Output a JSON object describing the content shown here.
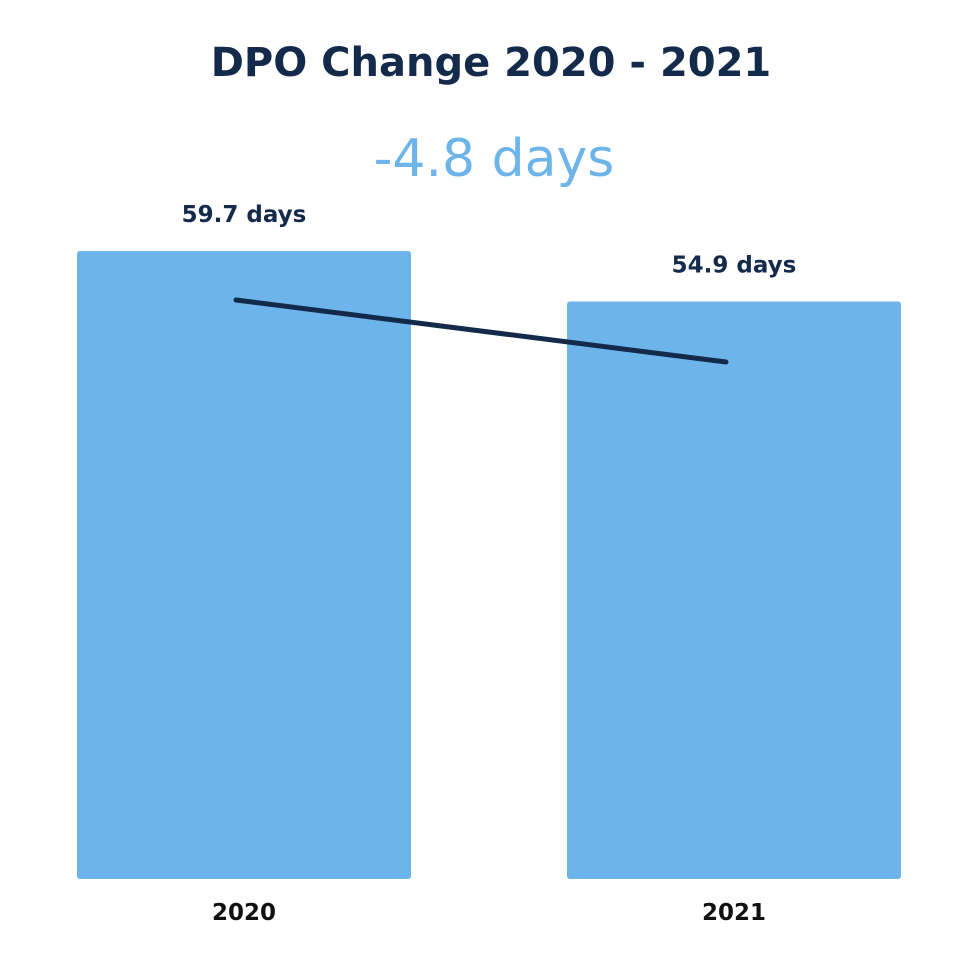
{
  "chart_data": {
    "type": "bar",
    "title": "DPO Change 2020 - 2021",
    "subtitle": "-4.8 days",
    "categories": [
      "2020",
      "2021"
    ],
    "values": [
      59.7,
      54.9
    ],
    "value_labels": [
      "59.7 days",
      "54.9 days"
    ],
    "unit": "days",
    "ylim": [
      0,
      59.7
    ],
    "grid": false,
    "legend": "none",
    "trend_line": true,
    "colors": {
      "bar": "#6cb4ea",
      "title": "#132a4b",
      "subtitle": "#6cb4ea",
      "trend_line": "#132a4b",
      "tick_label": "#111111"
    }
  }
}
